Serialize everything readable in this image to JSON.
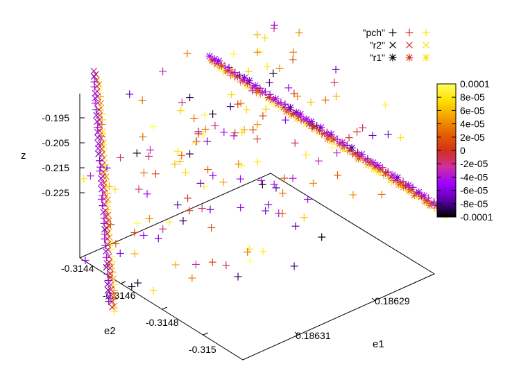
{
  "chart_data": {
    "type": "scatter3d",
    "title": "",
    "axes": {
      "x": {
        "label": "e1",
        "ticks": [
          "0.18631",
          "0.18629"
        ]
      },
      "y": {
        "label": "e2",
        "ticks": [
          "-0.3144",
          "-0.3146",
          "-0.3148",
          "-0.315"
        ]
      },
      "z": {
        "label": "z",
        "ticks": [
          "-0.195",
          "-0.205",
          "-0.215",
          "-0.225"
        ]
      }
    },
    "legend": {
      "placement": "top-right",
      "entries": [
        {
          "label": "\"pch\"",
          "marker": "plus"
        },
        {
          "label": "\"r2\"",
          "marker": "cross"
        },
        {
          "label": "\"r1\"",
          "marker": "star"
        }
      ]
    },
    "colorbar": {
      "range": [
        -0.0001,
        0.0001
      ],
      "ticks": [
        "0.0001",
        "8e-05",
        "6e-05",
        "4e-05",
        "2e-05",
        "0",
        "-2e-05",
        "-4e-05",
        "-6e-05",
        "-8e-05",
        "-0.0001"
      ],
      "palette": [
        "#000000",
        "#5a00a8",
        "#a000ff",
        "#cc30a0",
        "#d2301a",
        "#e66000",
        "#f5a000",
        "#ffe000",
        "#ffff60"
      ]
    },
    "series": [
      {
        "name": "\"r1\"",
        "marker": "star",
        "path": [
          [
            0.186305,
            -0.31436,
            -0.2
          ],
          [
            0.186312,
            -0.31496,
            -0.231
          ]
        ],
        "points": 46
      },
      {
        "name": "\"r2\"",
        "marker": "cross",
        "path": [
          [
            0.186294,
            -0.31432,
            -0.19
          ],
          [
            0.186282,
            -0.3148,
            -0.23
          ]
        ],
        "points": 42
      },
      {
        "name": "\"pch\"",
        "marker": "plus",
        "bounds": {
          "e1": [
            0.186282,
            0.186312
          ],
          "e2": [
            -0.31498,
            -0.31432
          ],
          "z": [
            -0.23,
            -0.19
          ]
        },
        "points": 190
      }
    ]
  }
}
